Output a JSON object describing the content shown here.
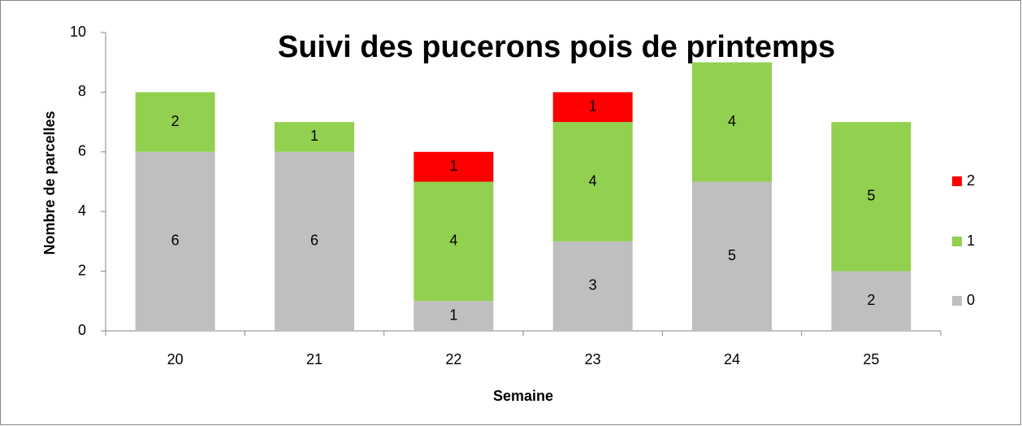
{
  "chart_data": {
    "type": "stacked_bar",
    "title": "Suivi des pucerons pois de printemps",
    "x_label": "Semaine",
    "y_label": "Nombre de parcelles",
    "categories": [
      "20",
      "21",
      "22",
      "23",
      "24",
      "25"
    ],
    "series": [
      {
        "name": "0",
        "color": "#bfbfbf",
        "values": [
          6,
          6,
          1,
          3,
          5,
          2
        ]
      },
      {
        "name": "1",
        "color": "#92d050",
        "values": [
          2,
          1,
          4,
          4,
          4,
          5
        ]
      },
      {
        "name": "2",
        "color": "#ff0000",
        "values": [
          null,
          null,
          1,
          1,
          null,
          null
        ]
      }
    ],
    "ylim": [
      0,
      10
    ],
    "yticks": [
      0,
      2,
      4,
      6,
      8,
      10
    ],
    "legend": "right"
  }
}
